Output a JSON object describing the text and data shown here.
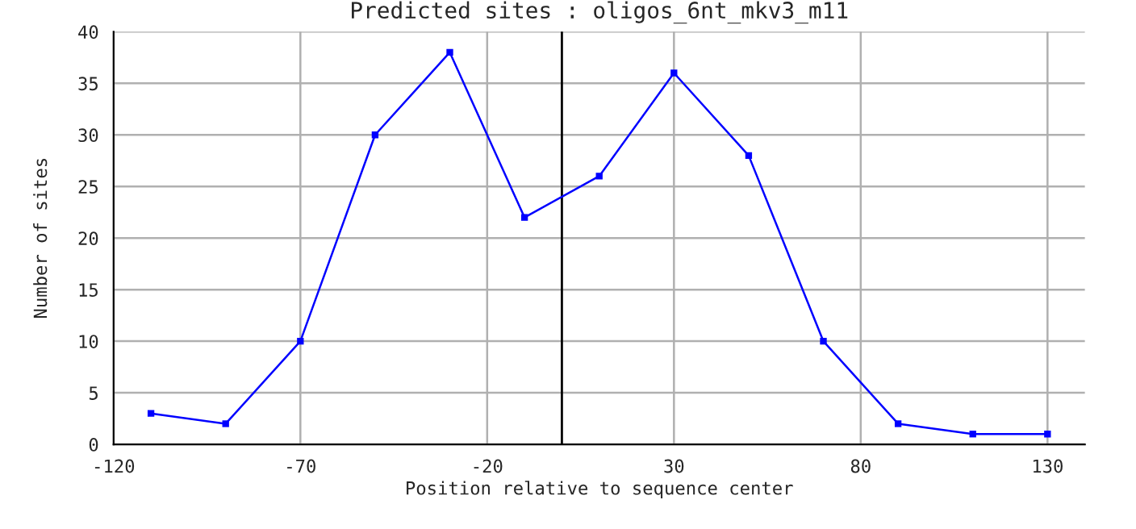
{
  "chart_data": {
    "type": "line",
    "title": "Predicted sites : oligos_6nt_mkv3_m11",
    "xlabel": "Position relative to sequence center",
    "ylabel": "Number of sites",
    "x": [
      -110,
      -90,
      -70,
      -50,
      -30,
      -10,
      10,
      30,
      50,
      70,
      90,
      110,
      130
    ],
    "series": [
      {
        "color": "#0000ff",
        "values": [
          3,
          2,
          10,
          30,
          38,
          22,
          26,
          36,
          28,
          10,
          2,
          1,
          1
        ]
      }
    ],
    "xlim": [
      -120,
      140
    ],
    "xticks": [
      -120,
      -70,
      -20,
      30,
      80,
      130
    ],
    "ylim": [
      0,
      40
    ],
    "yticks": [
      0,
      5,
      10,
      15,
      20,
      25,
      30,
      35,
      40
    ],
    "ref_lines": [
      {
        "axis": "x",
        "value": 0,
        "color": "#000000"
      }
    ],
    "grid": true,
    "marker": "square",
    "line_style": "solid",
    "legend": false
  }
}
